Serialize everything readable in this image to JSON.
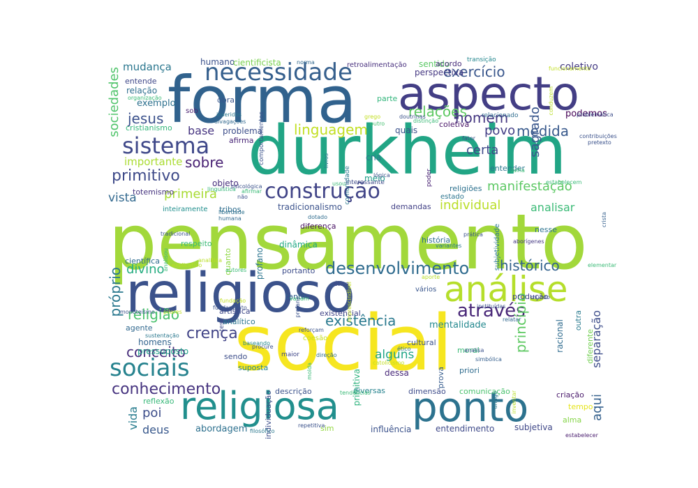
{
  "words": [
    {
      "text": "pensamento",
      "color": "#a2d83b"
    },
    {
      "text": "social",
      "color": "#f6e620"
    },
    {
      "text": "durkheim",
      "color": "#21a585"
    },
    {
      "text": "forma",
      "color": "#31628d"
    },
    {
      "text": "religioso",
      "color": "#3b528b"
    },
    {
      "text": "aspecto",
      "color": "#433e85"
    },
    {
      "text": "religiosa",
      "color": "#218f8d"
    },
    {
      "text": "ponto",
      "color": "#2c728e"
    },
    {
      "text": "análise",
      "color": "#b5de2b"
    },
    {
      "text": "necessidade",
      "color": "#355f8d"
    },
    {
      "text": "sistema",
      "color": "#3f4889"
    },
    {
      "text": "sociais",
      "color": "#26828e"
    },
    {
      "text": "construção",
      "color": "#414487"
    },
    {
      "text": "desenvolvimento",
      "color": "#2f6b8e"
    },
    {
      "text": "através",
      "color": "#482677"
    },
    {
      "text": "conhecimento",
      "color": "#46337f"
    },
    {
      "text": "primitivo",
      "color": "#3e4a89"
    },
    {
      "text": "exercício",
      "color": "#39568c"
    },
    {
      "text": "histórico",
      "color": "#33638d"
    },
    {
      "text": "existência",
      "color": "#29798e"
    },
    {
      "text": "manifestação",
      "color": "#5cc863"
    },
    {
      "text": "crença",
      "color": "#414487"
    },
    {
      "text": "religião",
      "color": "#4ac16d"
    },
    {
      "text": "conceito",
      "color": "#472d7b"
    },
    {
      "text": "relações",
      "color": "#5ec962"
    },
    {
      "text": "sobre",
      "color": "#482173"
    },
    {
      "text": "jesus",
      "color": "#3b518b"
    },
    {
      "text": "homem",
      "color": "#453781"
    },
    {
      "text": "povo",
      "color": "#433e85"
    },
    {
      "text": "medida",
      "color": "#38598c"
    },
    {
      "text": "primeira",
      "color": "#a8db34"
    },
    {
      "text": "linguagem",
      "color": "#c2df23"
    },
    {
      "text": "sociedades",
      "color": "#4fc46a"
    },
    {
      "text": "princípio",
      "color": "#5ec962"
    },
    {
      "text": "individual",
      "color": "#bade28"
    },
    {
      "text": "analisar",
      "color": "#3aba76"
    },
    {
      "text": "vista",
      "color": "#31688e"
    },
    {
      "text": "próprio",
      "color": "#2a788e"
    },
    {
      "text": "sagrado",
      "color": "#39568c"
    },
    {
      "text": "base",
      "color": "#463480"
    },
    {
      "text": "certa",
      "color": "#3e4989"
    },
    {
      "text": "divino",
      "color": "#27ad81"
    },
    {
      "text": "aqui",
      "color": "#34608d"
    },
    {
      "text": "separação",
      "color": "#3d4d8a"
    },
    {
      "text": "alguns",
      "color": "#20a486"
    },
    {
      "text": "poi",
      "color": "#3d4e8a"
    },
    {
      "text": "deus",
      "color": "#38588c"
    },
    {
      "text": "vida",
      "color": "#287c8e"
    },
    {
      "text": "mudança",
      "color": "#2a768e"
    },
    {
      "text": "humano",
      "color": "#3b518b"
    },
    {
      "text": "cientificista",
      "color": "#7ad151"
    },
    {
      "text": "sentido",
      "color": "#5ac864"
    },
    {
      "text": "acordo",
      "color": "#472c7a"
    },
    {
      "text": "transição",
      "color": "#24878e"
    },
    {
      "text": "coletivo",
      "color": "#443a83"
    },
    {
      "text": "perspectiva",
      "color": "#453882"
    },
    {
      "text": "entende",
      "color": "#3f4788"
    },
    {
      "text": "relação",
      "color": "#2e6e8e"
    },
    {
      "text": "exemplo",
      "color": "#2d708e"
    },
    {
      "text": "obra",
      "color": "#39558c"
    },
    {
      "text": "parte",
      "color": "#31b57b"
    },
    {
      "text": "sob",
      "color": "#481f70"
    },
    {
      "text": "cristianismo",
      "color": "#33b67a"
    },
    {
      "text": "problema",
      "color": "#3d4e8a"
    },
    {
      "text": "afirma",
      "color": "#482576"
    },
    {
      "text": "quais",
      "color": "#3b528b"
    },
    {
      "text": "coletiva",
      "color": "#481467"
    },
    {
      "text": "podemos",
      "color": "#440154"
    },
    {
      "text": "importante",
      "color": "#aadc32"
    },
    {
      "text": "cria",
      "color": "#2b758e"
    },
    {
      "text": "entender",
      "color": "#2a788e"
    },
    {
      "text": "totemismo",
      "color": "#46337f"
    },
    {
      "text": "objeto",
      "color": "#472f7d"
    },
    {
      "text": "meio",
      "color": "#1f9e89"
    },
    {
      "text": "religiões",
      "color": "#2c718e"
    },
    {
      "text": "estado",
      "color": "#2b748e"
    },
    {
      "text": "tribos",
      "color": "#2e6d8e"
    },
    {
      "text": "tradicionalismo",
      "color": "#3b528b"
    },
    {
      "text": "demandas",
      "color": "#424186"
    },
    {
      "text": "nesse",
      "color": "#2c738e"
    },
    {
      "text": "inteiramente",
      "color": "#218f8d"
    },
    {
      "text": "diferença",
      "color": "#471063"
    },
    {
      "text": "respeito",
      "color": "#3aba76"
    },
    {
      "text": "quanto",
      "color": "#8fd744"
    },
    {
      "text": "profano",
      "color": "#2b748e"
    },
    {
      "text": "história",
      "color": "#2e6e8e"
    },
    {
      "text": "dinâmica",
      "color": "#22a884"
    },
    {
      "text": "científica",
      "color": "#2f6c8e"
    },
    {
      "text": "portanto",
      "color": "#3d4d8a"
    },
    {
      "text": "produção",
      "color": "#414287"
    },
    {
      "text": "tanto",
      "color": "#34608d"
    },
    {
      "text": "vários",
      "color": "#39568c"
    },
    {
      "text": "artística",
      "color": "#3f4889"
    },
    {
      "text": "analítico",
      "color": "#2b758e"
    },
    {
      "text": "existencial",
      "color": "#414487"
    },
    {
      "text": "agente",
      "color": "#31688e"
    },
    {
      "text": "mentalidade",
      "color": "#23888e"
    },
    {
      "text": "racional",
      "color": "#2f6b8e"
    },
    {
      "text": "outra",
      "color": "#297a8e"
    },
    {
      "text": "diferente",
      "color": "#75d054"
    },
    {
      "text": "homens",
      "color": "#32648e"
    },
    {
      "text": "pressuposto",
      "color": "#1fa088"
    },
    {
      "text": "sendo",
      "color": "#3d4e8a"
    },
    {
      "text": "suposta",
      "color": "#25838e"
    },
    {
      "text": "coesão",
      "color": "#c8e020"
    },
    {
      "text": "cultural",
      "color": "#3b528b"
    },
    {
      "text": "moral",
      "color": "#3aba76"
    },
    {
      "text": "prova",
      "color": "#365c8d"
    },
    {
      "text": "priori",
      "color": "#2f6c8e"
    },
    {
      "text": "dessa",
      "color": "#482979"
    },
    {
      "text": "primitiva",
      "color": "#2db27d"
    },
    {
      "text": "individuação",
      "color": "#3d4e8a"
    },
    {
      "text": "descrição",
      "color": "#3b528b"
    },
    {
      "text": "diversas",
      "color": "#26828e"
    },
    {
      "text": "dimensão",
      "color": "#3e4c8a"
    },
    {
      "text": "comunicação",
      "color": "#4ac16d"
    },
    {
      "text": "reflexão",
      "color": "#37b878"
    },
    {
      "text": "abordagem",
      "color": "#2d708e"
    },
    {
      "text": "sim",
      "color": "#93d741"
    },
    {
      "text": "influência",
      "color": "#3b528b"
    },
    {
      "text": "entendimento",
      "color": "#3e4989"
    },
    {
      "text": "subjetiva",
      "color": "#3f4788"
    },
    {
      "text": "alma",
      "color": "#86d549"
    },
    {
      "text": "tempo",
      "color": "#e5e419"
    },
    {
      "text": "criação",
      "color": "#48186a"
    },
    {
      "text": "subjetividade",
      "color": "#2a788e"
    },
    {
      "text": "crista",
      "color": "#35608d"
    },
    {
      "text": "comportamentos",
      "color": "#3b528b"
    },
    {
      "text": "interessante",
      "color": "#3e4a89"
    },
    {
      "text": "retroalimentação",
      "color": "#472f7d"
    },
    {
      "text": "comunidade",
      "color": "#2a788e"
    },
    {
      "text": "fator",
      "color": "#3b528b"
    },
    {
      "text": "poder",
      "color": "#482173"
    },
    {
      "text": "humana",
      "color": "#31688e"
    },
    {
      "text": "relacionado",
      "color": "#2f6c8e"
    },
    {
      "text": "grego",
      "color": "#c2df23"
    },
    {
      "text": "outro",
      "color": "#44bf70"
    },
    {
      "text": "ética",
      "color": "#3f4889"
    },
    {
      "text": "ético",
      "color": "#2c728e"
    },
    {
      "text": "analisa",
      "color": "#3b528b"
    },
    {
      "text": "simbólica",
      "color": "#355f8d"
    },
    {
      "text": "tese",
      "color": "#3e4a89"
    },
    {
      "text": "baseando",
      "color": "#24878e"
    },
    {
      "text": "maior",
      "color": "#3f4788"
    },
    {
      "text": "antigo",
      "color": "#2a778e"
    },
    {
      "text": "estabelecer",
      "color": "#481b6d"
    },
    {
      "text": "mundo",
      "color": "#3b528b"
    },
    {
      "text": "relatar",
      "color": "#31688e"
    },
    {
      "text": "direção",
      "color": "#2f6c8e"
    },
    {
      "text": "prática",
      "color": "#3b528b"
    },
    {
      "text": "aborígenes",
      "color": "#453882"
    },
    {
      "text": "problemática",
      "color": "#3d4e8a"
    },
    {
      "text": "inseridos",
      "color": "#2a788e"
    },
    {
      "text": "divagações",
      "color": "#31688e"
    },
    {
      "text": "linguística",
      "color": "#34b679"
    },
    {
      "text": "psicológica",
      "color": "#3b528b"
    },
    {
      "text": "liberdade",
      "color": "#2d708e"
    },
    {
      "text": "não",
      "color": "#3b528b"
    },
    {
      "text": "afirmar",
      "color": "#3aba76"
    },
    {
      "text": "dotado",
      "color": "#2f6c8e"
    },
    {
      "text": "norma",
      "color": "#31688e"
    },
    {
      "text": "organização",
      "color": "#3aba76"
    },
    {
      "text": "monoteísmo",
      "color": "#3b528b"
    },
    {
      "text": "fundamento",
      "color": "#3b528b"
    },
    {
      "text": "variam",
      "color": "#3aba76"
    },
    {
      "text": "fundação",
      "color": "#c2df23"
    },
    {
      "text": "procure",
      "color": "#3b528b"
    },
    {
      "text": "sustentação",
      "color": "#2a788e"
    },
    {
      "text": "filosófico",
      "color": "#2a788e"
    },
    {
      "text": "tendências",
      "color": "#3aba76"
    },
    {
      "text": "repetitiva",
      "color": "#3b528b"
    },
    {
      "text": "inventar",
      "color": "#bade28"
    },
    {
      "text": "livros",
      "color": "#2a788e"
    },
    {
      "text": "falha",
      "color": "#3aba76"
    },
    {
      "text": "usou",
      "color": "#3aba76"
    },
    {
      "text": "lógica",
      "color": "#3b528b"
    },
    {
      "text": "doutrinas",
      "color": "#3b528b"
    },
    {
      "text": "distinção",
      "color": "#3aba76"
    },
    {
      "text": "catolicismo",
      "color": "#c2df23"
    },
    {
      "text": "reforçam",
      "color": "#3b528b"
    },
    {
      "text": "variantes",
      "color": "#2a788e"
    },
    {
      "text": "instituídas",
      "color": "#3b528b"
    },
    {
      "text": "pretexto",
      "color": "#3b528b"
    },
    {
      "text": "contribuições",
      "color": "#3b528b"
    },
    {
      "text": "funcionamento",
      "color": "#c2df23"
    },
    {
      "text": "estabelecem",
      "color": "#3aba76"
    },
    {
      "text": "conduzem",
      "color": "#bade28"
    },
    {
      "text": "explicativo",
      "color": "#bade28"
    },
    {
      "text": "imprescindível",
      "color": "#c2df23"
    },
    {
      "text": "analítica",
      "color": "#bade28"
    },
    {
      "text": "autores",
      "color": "#3aba76"
    },
    {
      "text": "profane",
      "color": "#3b528b"
    },
    {
      "text": "tradicional",
      "color": "#3b528b"
    },
    {
      "text": "analisou",
      "color": "#3aba76"
    },
    {
      "text": "elementar",
      "color": "#3aba76"
    },
    {
      "text": "aporte",
      "color": "#bade28"
    },
    {
      "text": "pilares",
      "color": "#c2df23"
    },
    {
      "text": "molda",
      "color": "#3aba76"
    },
    {
      "text": "comunicação",
      "color": "#bade28"
    },
    {
      "text": "nunca",
      "color": "#3aba76"
    },
    {
      "text": "liturgias",
      "color": "#bade28"
    }
  ]
}
